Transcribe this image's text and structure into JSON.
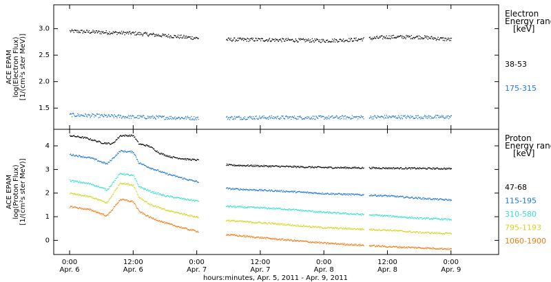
{
  "chart_data": [
    {
      "type": "scatter",
      "ylabel_lines": [
        "ACE EPAM",
        "log(Electron Flux)",
        "[1/(cm²s ster MeV)]"
      ],
      "ylim": [
        1.1,
        3.45
      ],
      "yticks": [
        1.5,
        2.0,
        2.5,
        3.0
      ],
      "ytick_labels": [
        "1.5",
        "2.0",
        "2.5",
        "3.0"
      ],
      "legend_title": [
        "Electron",
        "Energy range",
        "[keV]"
      ],
      "series": [
        {
          "name": "38-53",
          "color": "#000000",
          "knots": [
            [
              0,
              2.96
            ],
            [
              12,
              2.92
            ],
            [
              24,
              2.83
            ],
            [
              30,
              2.8
            ],
            [
              36,
              2.8
            ],
            [
              48,
              2.78
            ],
            [
              54,
              2.8
            ],
            [
              60,
              2.85
            ],
            [
              66,
              2.85
            ],
            [
              72,
              2.8
            ]
          ]
        },
        {
          "name": "175-315",
          "color": "#1f77d0",
          "knots": [
            [
              0,
              1.38
            ],
            [
              12,
              1.34
            ],
            [
              24,
              1.32
            ],
            [
              36,
              1.33
            ],
            [
              48,
              1.33
            ],
            [
              60,
              1.34
            ],
            [
              72,
              1.34
            ]
          ]
        }
      ]
    },
    {
      "type": "scatter",
      "ylabel_lines": [
        "ACE EPAM",
        "log(Proton Flux)",
        "[1/(cm²s ster MeV)]"
      ],
      "ylim": [
        -0.6,
        4.7
      ],
      "yticks": [
        0,
        1,
        2,
        3,
        4
      ],
      "ytick_labels": [
        "0",
        "1",
        "2",
        "3",
        "4"
      ],
      "legend_title": [
        "Proton",
        "Energy range",
        "[keV]"
      ],
      "series": [
        {
          "name": "47-68",
          "color": "#000000",
          "knots": [
            [
              0,
              4.45
            ],
            [
              3,
              4.35
            ],
            [
              6,
              4.15
            ],
            [
              8,
              4.1
            ],
            [
              9.5,
              4.45
            ],
            [
              12,
              4.45
            ],
            [
              13,
              4.1
            ],
            [
              15,
              4.0
            ],
            [
              17,
              3.7
            ],
            [
              19,
              3.55
            ],
            [
              22,
              3.45
            ],
            [
              25,
              3.4
            ],
            [
              30,
              3.2
            ],
            [
              48,
              3.1
            ],
            [
              72,
              3.05
            ]
          ]
        },
        {
          "name": "115-195",
          "color": "#1f77d0",
          "knots": [
            [
              0,
              3.65
            ],
            [
              4,
              3.5
            ],
            [
              7,
              3.25
            ],
            [
              9.5,
              3.8
            ],
            [
              12,
              3.75
            ],
            [
              13,
              3.3
            ],
            [
              15,
              3.1
            ],
            [
              18,
              2.85
            ],
            [
              22,
              2.6
            ],
            [
              25,
              2.45
            ],
            [
              30,
              2.2
            ],
            [
              40,
              2.1
            ],
            [
              48,
              2.0
            ],
            [
              60,
              1.9
            ],
            [
              66,
              1.8
            ],
            [
              72,
              1.72
            ]
          ]
        },
        {
          "name": "310-580",
          "color": "#33dfcf",
          "knots": [
            [
              0,
              2.55
            ],
            [
              4,
              2.4
            ],
            [
              7,
              2.15
            ],
            [
              9.5,
              2.85
            ],
            [
              12,
              2.75
            ],
            [
              13,
              2.3
            ],
            [
              15,
              2.1
            ],
            [
              18,
              1.9
            ],
            [
              22,
              1.75
            ],
            [
              25,
              1.65
            ],
            [
              30,
              1.45
            ],
            [
              40,
              1.35
            ],
            [
              48,
              1.2
            ],
            [
              60,
              1.05
            ],
            [
              66,
              0.95
            ],
            [
              72,
              0.9
            ]
          ]
        },
        {
          "name": "795-1193",
          "color": "#d4d41e",
          "knots": [
            [
              0,
              2.0
            ],
            [
              4,
              1.85
            ],
            [
              7,
              1.6
            ],
            [
              9.5,
              2.45
            ],
            [
              12,
              2.35
            ],
            [
              13,
              1.85
            ],
            [
              15,
              1.55
            ],
            [
              18,
              1.3
            ],
            [
              22,
              1.1
            ],
            [
              25,
              0.95
            ],
            [
              30,
              0.85
            ],
            [
              40,
              0.7
            ],
            [
              48,
              0.55
            ],
            [
              60,
              0.45
            ],
            [
              66,
              0.35
            ],
            [
              72,
              0.3
            ]
          ]
        },
        {
          "name": "1060-1900",
          "color": "#f07a0f",
          "knots": [
            [
              0,
              1.45
            ],
            [
              4,
              1.3
            ],
            [
              7,
              1.05
            ],
            [
              9.5,
              1.75
            ],
            [
              12,
              1.65
            ],
            [
              13,
              1.25
            ],
            [
              15,
              1.0
            ],
            [
              18,
              0.75
            ],
            [
              22,
              0.5
            ],
            [
              25,
              0.35
            ],
            [
              30,
              0.25
            ],
            [
              40,
              0.05
            ],
            [
              48,
              -0.1
            ],
            [
              60,
              -0.25
            ],
            [
              66,
              -0.3
            ],
            [
              72,
              -0.35
            ]
          ]
        }
      ]
    }
  ],
  "time_axis": {
    "xlabel": "hours:minutes, Apr. 5, 2011 - Apr. 9, 2011",
    "xlim": [
      -3,
      81
    ],
    "data_range": [
      0,
      72
    ],
    "gaps": [
      [
        24.3,
        29.5
      ],
      [
        55.5,
        56.5
      ]
    ],
    "xticks": [
      {
        "t": 0,
        "time": "0:00",
        "date": "Apr. 6"
      },
      {
        "t": 12,
        "time": "12:00",
        "date": "Apr. 6"
      },
      {
        "t": 24,
        "time": "0:00",
        "date": "Apr. 7"
      },
      {
        "t": 36,
        "time": "12:00",
        "date": "Apr. 7"
      },
      {
        "t": 48,
        "time": "0:00",
        "date": "Apr. 8"
      },
      {
        "t": 60,
        "time": "12:00",
        "date": "Apr. 8"
      },
      {
        "t": 72,
        "time": "0:00",
        "date": "Apr. 9"
      }
    ]
  }
}
